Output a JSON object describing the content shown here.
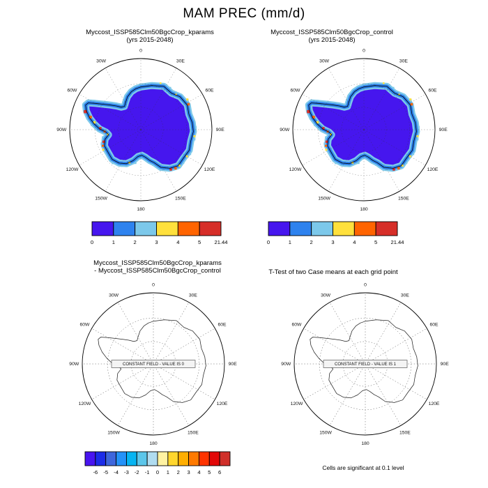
{
  "title": "MAM PREC (mm/d)",
  "map_longitude_labels": [
    "0",
    "30E",
    "60E",
    "90E",
    "120E",
    "150E",
    "180",
    "150W",
    "120W",
    "90W",
    "60W",
    "30W"
  ],
  "colors": {
    "map_fill_low": "#4616ee",
    "map_fill_mid": "#2e82ee",
    "map_fill_fringe": "#7cc8ea",
    "hot_yellow": "#ffe03c",
    "hot_orange": "#ff6400",
    "hot_red": "#d62e28",
    "coastline": "#000000",
    "grid": "#333333"
  },
  "chart_data": [
    {
      "type": "map",
      "panel": "top_left",
      "title": "Myccost_ISSP585Clm50BgcCrop_kparams",
      "subtitle": "(yrs 2015-2048)",
      "variable": "MAM PREC (mm/d)",
      "projection": "south polar stereographic",
      "region": "Antarctica",
      "colorbar": {
        "levels": [
          0,
          1,
          2,
          3,
          4,
          5,
          21.44
        ],
        "tick_labels": [
          "0",
          "1",
          "2",
          "3",
          "4",
          "5",
          "21.44"
        ],
        "colors": [
          "#4616ee",
          "#2e82ee",
          "#7cc8ea",
          "#ffe03c",
          "#ff6400",
          "#d62e28"
        ]
      }
    },
    {
      "type": "map",
      "panel": "top_right",
      "title": "Myccost_ISSP585Clm50BgcCrop_control",
      "subtitle": "(yrs 2015-2048)",
      "variable": "MAM PREC (mm/d)",
      "projection": "south polar stereographic",
      "region": "Antarctica",
      "colorbar": {
        "levels": [
          0,
          1,
          2,
          3,
          4,
          5,
          21.44
        ],
        "tick_labels": [
          "0",
          "1",
          "2",
          "3",
          "4",
          "5",
          "21.44"
        ],
        "colors": [
          "#4616ee",
          "#2e82ee",
          "#7cc8ea",
          "#ffe03c",
          "#ff6400",
          "#d62e28"
        ]
      }
    },
    {
      "type": "map",
      "panel": "bottom_left",
      "title": "Myccost_ISSP585Clm50BgcCrop_kparams",
      "subtitle": "- Myccost_ISSP585Clm50BgcCrop_control",
      "annotation": "CONSTANT FIELD - VALUE IS 0",
      "field_value": 0,
      "projection": "south polar stereographic",
      "region": "Antarctica",
      "colorbar": {
        "levels": [
          -6,
          -5,
          -4,
          -3,
          -2,
          -1,
          0,
          1,
          2,
          3,
          4,
          5,
          6
        ],
        "tick_labels": [
          "-6",
          "-5",
          "-4",
          "-3",
          "-2",
          "-1",
          "0",
          "1",
          "2",
          "3",
          "4",
          "5",
          "6"
        ],
        "colors": [
          "#4814f0",
          "#1c2ce8",
          "#3e66dc",
          "#2492f8",
          "#06b4f2",
          "#5cc6ea",
          "#b0dcf0",
          "#fff2a2",
          "#ffd62e",
          "#ffae00",
          "#ff7a00",
          "#ff3400",
          "#e20808",
          "#d0302a"
        ]
      }
    },
    {
      "type": "map",
      "panel": "bottom_right",
      "title": "T-Test of two Case means at each grid point",
      "annotation": "CONSTANT FIELD - VALUE IS 1",
      "field_value": 1,
      "projection": "south polar stereographic",
      "region": "Antarctica",
      "note": "Cells are significant at 0.1 level"
    }
  ]
}
